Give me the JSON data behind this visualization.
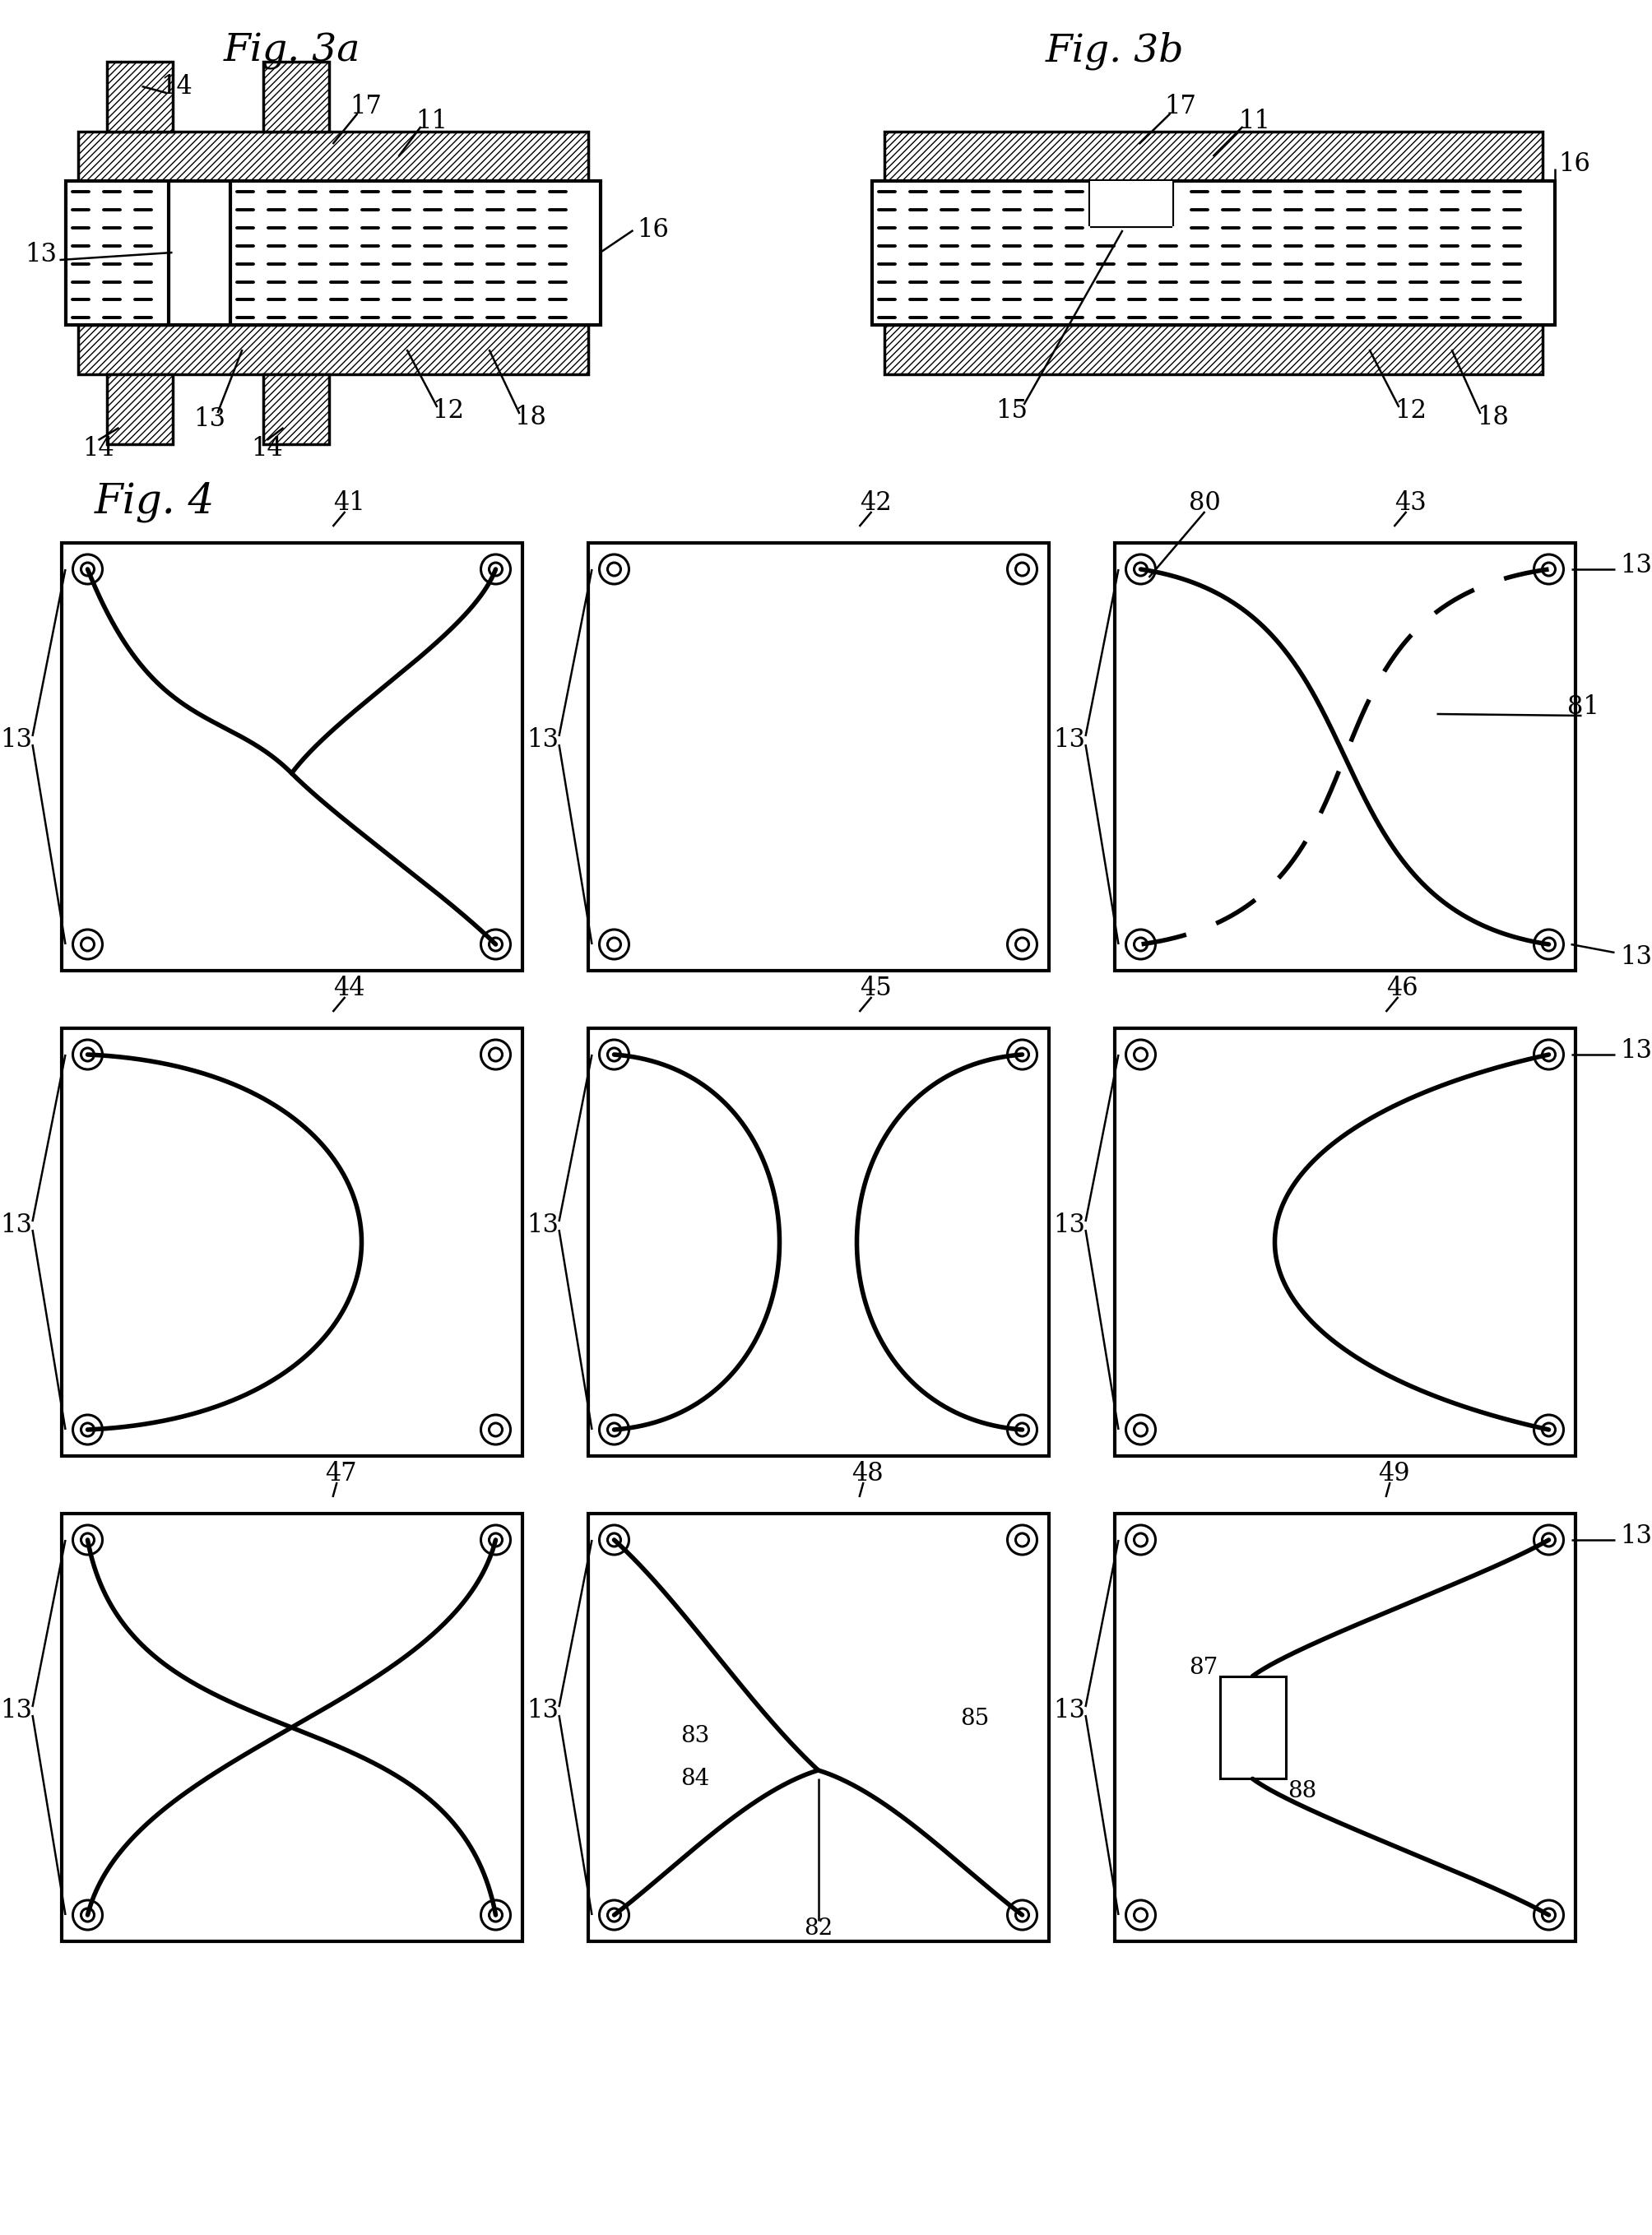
{
  "bg_color": "#ffffff",
  "black": "#000000",
  "fig3a_title": "Fig. 3a",
  "fig3b_title": "Fig. 3b",
  "fig4_title": "Fig. 4"
}
